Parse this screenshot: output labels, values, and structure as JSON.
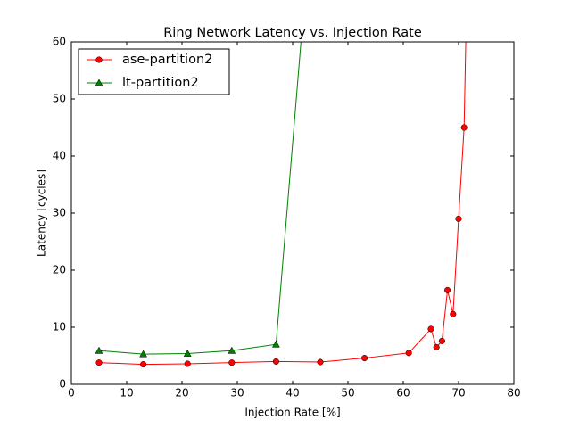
{
  "chart_data": {
    "type": "line",
    "title": "Ring Network Latency vs. Injection Rate",
    "x_label": "Injection Rate [%]",
    "y_label": "Latency [cycles]",
    "xlim": [
      0,
      80
    ],
    "ylim": [
      0,
      60
    ],
    "xticks": [
      0,
      10,
      20,
      30,
      40,
      50,
      60,
      70,
      80
    ],
    "yticks": [
      0,
      10,
      20,
      30,
      40,
      50,
      60
    ],
    "legend": "upper left",
    "series": [
      {
        "name": "ase-partition2",
        "color": "#ff0000",
        "marker": "circle",
        "x": [
          5,
          13,
          21,
          29,
          37,
          45,
          53,
          61,
          65,
          66,
          67,
          68,
          69,
          70,
          71,
          72
        ],
        "values": [
          3.8,
          3.5,
          3.6,
          3.8,
          4.0,
          3.9,
          4.6,
          5.5,
          9.7,
          6.5,
          7.6,
          16.5,
          12.3,
          29.0,
          45.0,
          95
        ]
      },
      {
        "name": "lt-partition2",
        "color": "#008000",
        "marker": "triangle",
        "x": [
          5,
          13,
          21,
          29,
          37,
          45
        ],
        "values": [
          5.9,
          5.3,
          5.4,
          5.9,
          7.0,
          101
        ]
      }
    ]
  }
}
